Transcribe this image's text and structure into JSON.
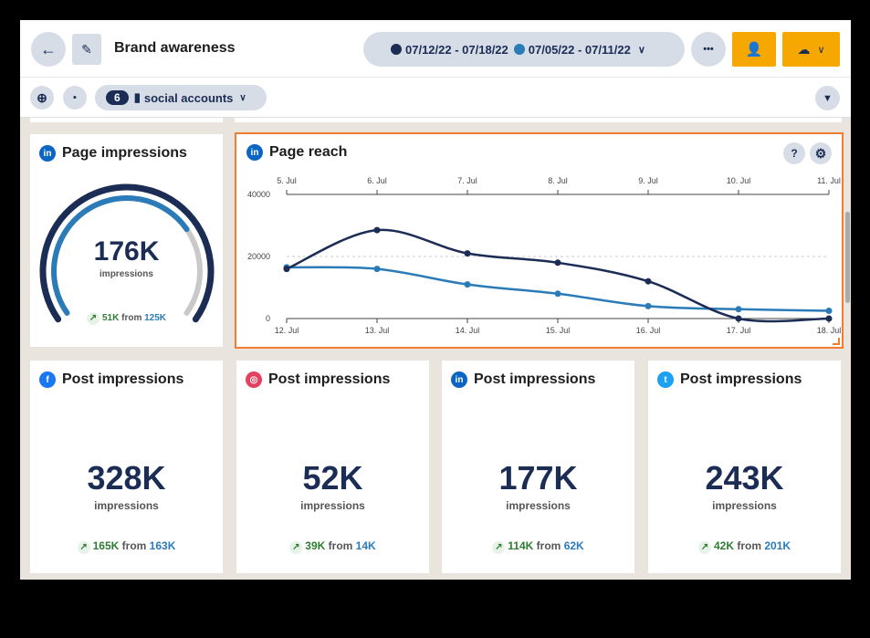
{
  "header": {
    "title": "Brand awareness",
    "back_icon": "arrow-left-icon",
    "edit_icon": "pencil-icon",
    "date_ranges": [
      {
        "label": "07/12/22 - 07/18/22",
        "color": "#1b2c55"
      },
      {
        "label": "07/05/22 - 07/11/22",
        "color": "#2b7bb9"
      }
    ],
    "more_label": "•••",
    "share_icon": "add-user-icon",
    "export_icon": "cloud-download-icon"
  },
  "toolbar": {
    "accounts_count": "6",
    "accounts_label": "social accounts",
    "add_icon": "plus-circle-icon",
    "comment_icon": "comment-icon",
    "filter_icon": "filter-icon"
  },
  "colors": {
    "accent": "#f6a800",
    "primary": "#1b2c55",
    "secondary": "#2b7bb9",
    "selected_border": "#f47c30"
  },
  "cards": {
    "page_impressions": {
      "network": "linkedin",
      "title": "Page impressions",
      "value": "176K",
      "unit": "impressions",
      "change": "51K",
      "from_label": "from",
      "previous": "125K",
      "gauge_fill": 0.72
    },
    "post": [
      {
        "network": "facebook",
        "title": "Post impressions",
        "value": "328K",
        "unit": "impressions",
        "change": "165K",
        "from_label": "from",
        "previous": "163K"
      },
      {
        "network": "instagram",
        "title": "Post impressions",
        "value": "52K",
        "unit": "impressions",
        "change": "39K",
        "from_label": "from",
        "previous": "14K"
      },
      {
        "network": "linkedin",
        "title": "Post impressions",
        "value": "177K",
        "unit": "impressions",
        "change": "114K",
        "from_label": "from",
        "previous": "62K"
      },
      {
        "network": "twitter",
        "title": "Post impressions",
        "value": "243K",
        "unit": "impressions",
        "change": "42K",
        "from_label": "from",
        "previous": "201K"
      }
    ]
  },
  "chart_data": {
    "type": "line",
    "title": "Page reach",
    "x": [
      "12. Jul",
      "13. Jul",
      "14. Jul",
      "15. Jul",
      "16. Jul",
      "17. Jul",
      "18. Jul"
    ],
    "x_top": [
      "5. Jul",
      "6. Jul",
      "7. Jul",
      "8. Jul",
      "9. Jul",
      "10. Jul",
      "11. Jul"
    ],
    "ylim": [
      0,
      40000
    ],
    "yticks": [
      "0",
      "20000",
      "40000"
    ],
    "series": [
      {
        "values": [
          16000,
          28500,
          21000,
          18000,
          12000,
          0,
          0
        ],
        "color": "#1b2c55"
      },
      {
        "values": [
          16500,
          16000,
          11000,
          8000,
          4000,
          3000,
          2500
        ],
        "color": "#2b7bb9"
      }
    ]
  }
}
